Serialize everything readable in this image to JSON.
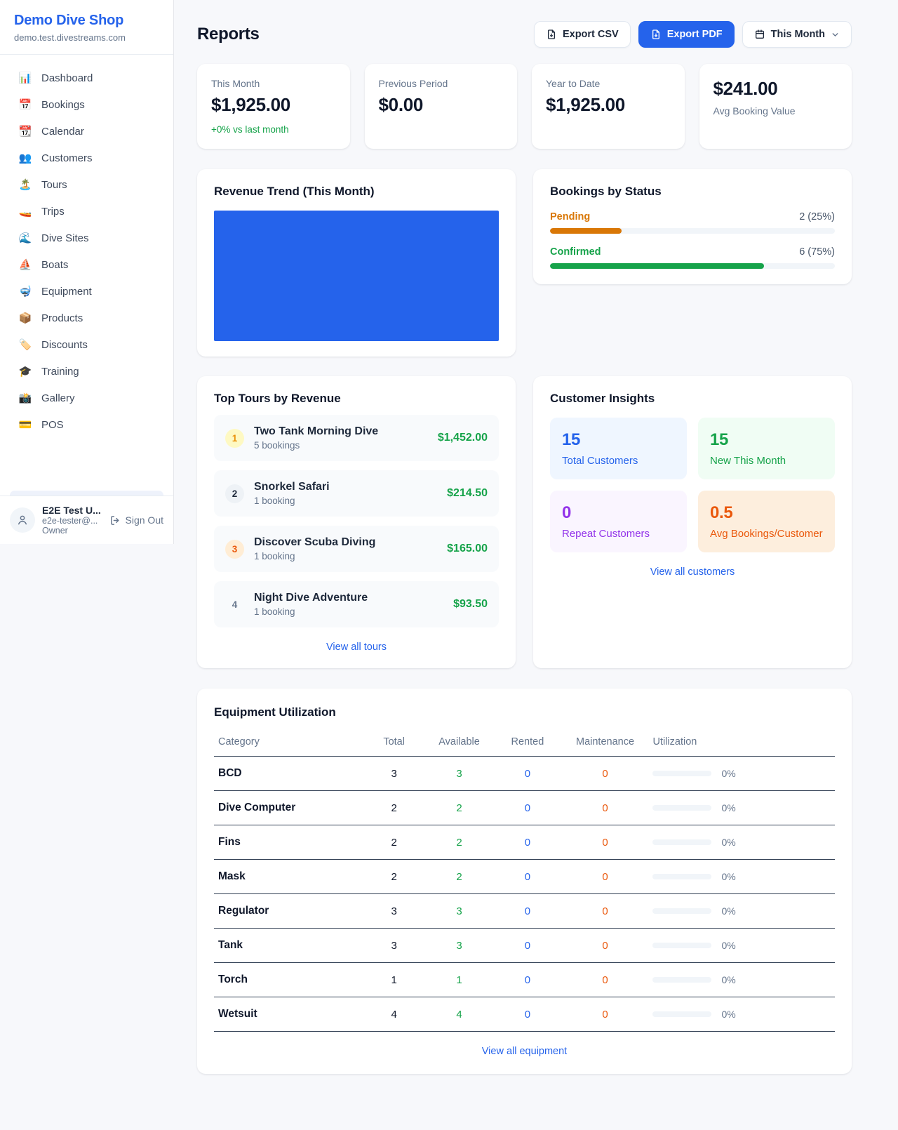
{
  "colors": {
    "accent_blue": "#2563eb",
    "success_green": "#16a34a",
    "pending_orange": "#d97706",
    "maintenance_orange": "#ea580c",
    "repeat_purple": "#9333ea",
    "page_bg": "#f7f8fb"
  },
  "sidebar": {
    "shop_name": "Demo Dive Shop",
    "shop_domain": "demo.test.divestreams.com",
    "items": [
      {
        "icon": "📊",
        "label": "Dashboard"
      },
      {
        "icon": "📅",
        "label": "Bookings"
      },
      {
        "icon": "📆",
        "label": "Calendar"
      },
      {
        "icon": "👥",
        "label": "Customers"
      },
      {
        "icon": "🏝️",
        "label": "Tours"
      },
      {
        "icon": "🚤",
        "label": "Trips"
      },
      {
        "icon": "🌊",
        "label": "Dive Sites"
      },
      {
        "icon": "⛵",
        "label": "Boats"
      },
      {
        "icon": "🤿",
        "label": "Equipment"
      },
      {
        "icon": "📦",
        "label": "Products"
      },
      {
        "icon": "🏷️",
        "label": "Discounts"
      },
      {
        "icon": "🎓",
        "label": "Training"
      },
      {
        "icon": "📸",
        "label": "Gallery"
      },
      {
        "icon": "💳",
        "label": "POS"
      }
    ],
    "user": {
      "name": "E2E Test U...",
      "email": "e2e-tester@...",
      "role": "Owner",
      "sign_out_label": "Sign Out"
    }
  },
  "header": {
    "title": "Reports",
    "export_csv_label": "Export CSV",
    "export_pdf_label": "Export PDF",
    "period_label": "This Month"
  },
  "stats": [
    {
      "label": "This Month",
      "value": "$1,925.00",
      "delta": "+0% vs last month"
    },
    {
      "label": "Previous Period",
      "value": "$0.00"
    },
    {
      "label": "Year to Date",
      "value": "$1,925.00"
    },
    {
      "label": "Avg Booking Value",
      "value": "$241.00"
    }
  ],
  "revenue_trend": {
    "title": "Revenue Trend (This Month)"
  },
  "bookings_by_status": {
    "title": "Bookings by Status",
    "rows": [
      {
        "label": "Pending",
        "count_text": "2 (25%)",
        "percent": 25
      },
      {
        "label": "Confirmed",
        "count_text": "6 (75%)",
        "percent": 75
      }
    ]
  },
  "chart_data": [
    {
      "type": "bar",
      "title": "Revenue Trend (This Month)",
      "categories": [
        "This Month"
      ],
      "values": [
        1925.0
      ],
      "ylim": [
        0,
        1925
      ],
      "bar_color": "#2563eb",
      "note": "single full-width, full-height bar with no axes or labels"
    },
    {
      "type": "bar",
      "title": "Bookings by Status",
      "categories": [
        "Pending",
        "Confirmed"
      ],
      "values": [
        2,
        6
      ],
      "percentages": [
        25,
        75
      ],
      "colors": [
        "#d97706",
        "#16a34a"
      ],
      "note": "horizontal progress bars"
    }
  ],
  "top_tours": {
    "title": "Top Tours by Revenue",
    "rows": [
      {
        "rank": "1",
        "name": "Two Tank Morning Dive",
        "bookings": "5 bookings",
        "revenue": "$1,452.00"
      },
      {
        "rank": "2",
        "name": "Snorkel Safari",
        "bookings": "1 booking",
        "revenue": "$214.50"
      },
      {
        "rank": "3",
        "name": "Discover Scuba Diving",
        "bookings": "1 booking",
        "revenue": "$165.00"
      },
      {
        "rank": "4",
        "name": "Night Dive Adventure",
        "bookings": "1 booking",
        "revenue": "$93.50"
      }
    ],
    "view_all_label": "View all tours"
  },
  "customer_insights": {
    "title": "Customer Insights",
    "tiles": [
      {
        "value": "15",
        "label": "Total Customers"
      },
      {
        "value": "15",
        "label": "New This Month"
      },
      {
        "value": "0",
        "label": "Repeat Customers"
      },
      {
        "value": "0.5",
        "label": "Avg Bookings/Customer"
      }
    ],
    "view_all_label": "View all customers"
  },
  "equipment": {
    "title": "Equipment Utilization",
    "columns": [
      "Category",
      "Total",
      "Available",
      "Rented",
      "Maintenance",
      "Utilization"
    ],
    "rows": [
      {
        "category": "BCD",
        "total": "3",
        "available": "3",
        "rented": "0",
        "maintenance": "0",
        "utilization_pct": 0,
        "utilization": "0%"
      },
      {
        "category": "Dive Computer",
        "total": "2",
        "available": "2",
        "rented": "0",
        "maintenance": "0",
        "utilization_pct": 0,
        "utilization": "0%"
      },
      {
        "category": "Fins",
        "total": "2",
        "available": "2",
        "rented": "0",
        "maintenance": "0",
        "utilization_pct": 0,
        "utilization": "0%"
      },
      {
        "category": "Mask",
        "total": "2",
        "available": "2",
        "rented": "0",
        "maintenance": "0",
        "utilization_pct": 0,
        "utilization": "0%"
      },
      {
        "category": "Regulator",
        "total": "3",
        "available": "3",
        "rented": "0",
        "maintenance": "0",
        "utilization_pct": 0,
        "utilization": "0%"
      },
      {
        "category": "Tank",
        "total": "3",
        "available": "3",
        "rented": "0",
        "maintenance": "0",
        "utilization_pct": 0,
        "utilization": "0%"
      },
      {
        "category": "Torch",
        "total": "1",
        "available": "1",
        "rented": "0",
        "maintenance": "0",
        "utilization_pct": 0,
        "utilization": "0%"
      },
      {
        "category": "Wetsuit",
        "total": "4",
        "available": "4",
        "rented": "0",
        "maintenance": "0",
        "utilization_pct": 0,
        "utilization": "0%"
      }
    ],
    "view_all_label": "View all equipment"
  }
}
